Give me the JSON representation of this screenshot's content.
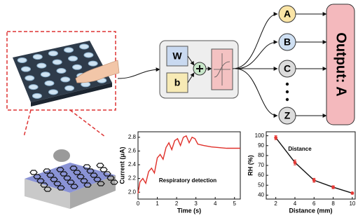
{
  "diagram": {
    "neuron": {
      "weight": "W",
      "bias": "b"
    },
    "outputs": [
      "A",
      "B",
      "C",
      "Z"
    ],
    "result": "Output: A"
  },
  "chart_data": [
    {
      "type": "line",
      "xlabel": "Time (s)",
      "ylabel": "Current (μA)",
      "annotation": "Respiratory detection",
      "x": [
        0,
        0.1,
        0.25,
        0.4,
        0.55,
        0.7,
        0.85,
        1.0,
        1.15,
        1.3,
        1.45,
        1.6,
        1.75,
        1.9,
        2.05,
        2.2,
        2.35,
        2.5,
        2.65,
        2.8,
        2.95,
        3.1,
        3.4,
        3.8,
        4.2,
        4.6,
        5.0,
        5.3
      ],
      "values": [
        1.98,
        2.15,
        2.2,
        2.13,
        2.3,
        2.35,
        2.28,
        2.5,
        2.55,
        2.48,
        2.65,
        2.72,
        2.62,
        2.75,
        2.78,
        2.68,
        2.8,
        2.82,
        2.72,
        2.8,
        2.78,
        2.7,
        2.68,
        2.66,
        2.65,
        2.64,
        2.64,
        2.64
      ],
      "color": "#e0302a",
      "xlim": [
        0,
        5.3
      ],
      "ylim": [
        1.9,
        2.88
      ],
      "xticks": [
        0,
        1,
        2,
        3,
        4,
        5
      ],
      "yticks": [
        {
          "value": 2,
          "label": "2.0"
        },
        2.2,
        2.4,
        2.6,
        2.8
      ]
    },
    {
      "type": "line",
      "xlabel": "Distance (mm)",
      "ylabel": "RH (%)",
      "annotation": "Distance",
      "x": [
        2,
        4,
        6,
        8,
        10
      ],
      "values": [
        98,
        73,
        55,
        48,
        42
      ],
      "errors": [
        2,
        2.5,
        2,
        1.5,
        1
      ],
      "color": "#111111",
      "marker_color": "#e53935",
      "markers": true,
      "xlim": [
        1,
        10.3
      ],
      "ylim": [
        36,
        104
      ],
      "xticks": [
        2,
        4,
        6,
        8,
        10
      ],
      "yticks": [
        40,
        50,
        60,
        70,
        80,
        90,
        100
      ]
    }
  ]
}
